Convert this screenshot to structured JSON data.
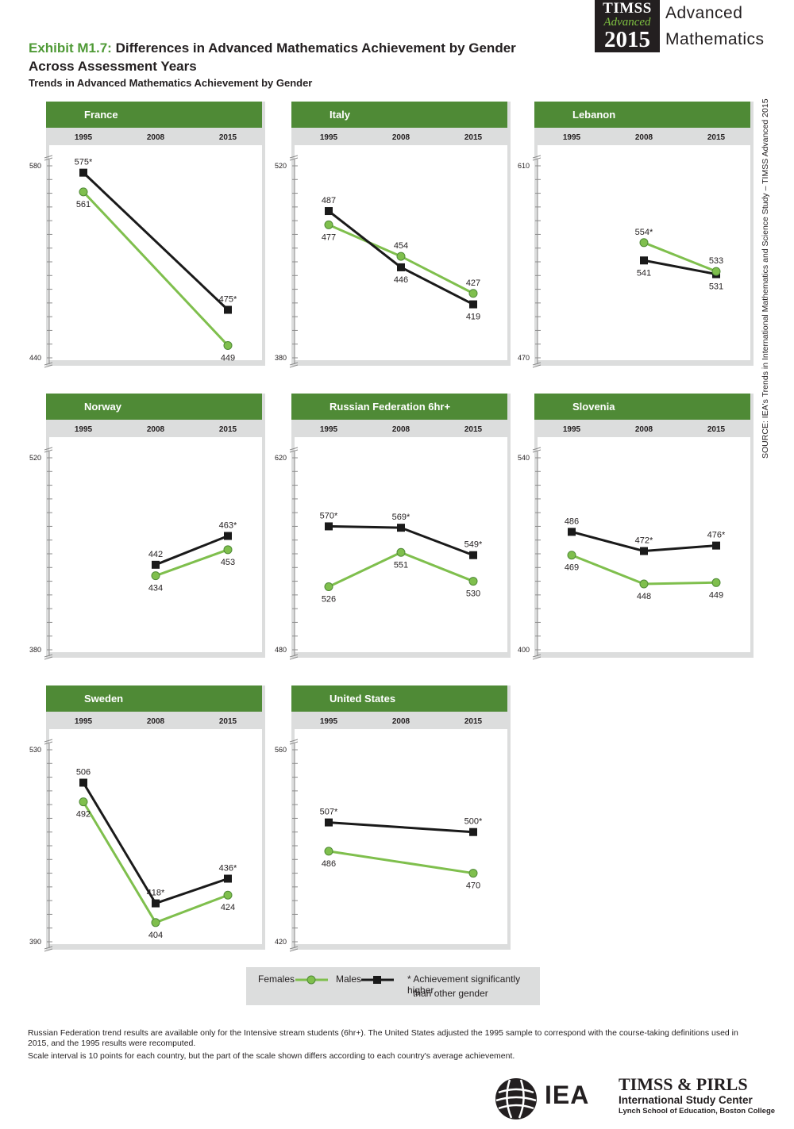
{
  "header": {
    "logo_line1": "TIMSS",
    "logo_line2": "Advanced",
    "logo_line3": "2015",
    "subject_line1": "Advanced",
    "subject_line2": "Mathematics"
  },
  "title": {
    "exhibit_number": "Exhibit M1.7:",
    "line1_rest": "Differences in Advanced Mathematics Achievement by Gender",
    "line2": "Across Assessment Years",
    "subtitle": "Trends in Advanced Mathematics Achievement by Gender"
  },
  "source_note": "SOURCE: IEA's Trends in International Mathematics and Science Study – TIMSS Advanced 2015",
  "colors": {
    "header_green": "#4f8a36",
    "female_line": "#7fbf4d",
    "male_line": "#1a1a1a",
    "year_band": "#dcdddd",
    "panel_shadow": "#dcdddd"
  },
  "chart_data": [
    {
      "type": "line",
      "title": "France",
      "categories": [
        "1995",
        "2008",
        "2015"
      ],
      "ylim": [
        440,
        580
      ],
      "series": [
        {
          "name": "Females",
          "values": [
            561,
            null,
            449
          ],
          "significant": [
            false,
            false,
            false
          ]
        },
        {
          "name": "Males",
          "values": [
            575,
            null,
            475
          ],
          "significant": [
            true,
            false,
            true
          ]
        }
      ]
    },
    {
      "type": "line",
      "title": "Italy",
      "categories": [
        "1995",
        "2008",
        "2015"
      ],
      "ylim": [
        380,
        520
      ],
      "series": [
        {
          "name": "Females",
          "values": [
            477,
            454,
            427
          ],
          "significant": [
            false,
            false,
            false
          ]
        },
        {
          "name": "Males",
          "values": [
            487,
            446,
            419
          ],
          "significant": [
            false,
            false,
            false
          ]
        }
      ]
    },
    {
      "type": "line",
      "title": "Lebanon",
      "categories": [
        "1995",
        "2008",
        "2015"
      ],
      "ylim": [
        470,
        610
      ],
      "series": [
        {
          "name": "Females",
          "values": [
            null,
            554,
            533
          ],
          "significant": [
            false,
            true,
            false
          ]
        },
        {
          "name": "Males",
          "values": [
            null,
            541,
            531
          ],
          "significant": [
            false,
            false,
            false
          ]
        }
      ]
    },
    {
      "type": "line",
      "title": "Norway",
      "categories": [
        "1995",
        "2008",
        "2015"
      ],
      "ylim": [
        380,
        520
      ],
      "series": [
        {
          "name": "Females",
          "values": [
            null,
            434,
            453
          ],
          "significant": [
            false,
            false,
            false
          ]
        },
        {
          "name": "Males",
          "values": [
            null,
            442,
            463
          ],
          "significant": [
            false,
            false,
            true
          ]
        }
      ]
    },
    {
      "type": "line",
      "title": "Russian Federation 6hr+",
      "categories": [
        "1995",
        "2008",
        "2015"
      ],
      "ylim": [
        480,
        620
      ],
      "series": [
        {
          "name": "Females",
          "values": [
            526,
            551,
            530
          ],
          "significant": [
            false,
            false,
            false
          ]
        },
        {
          "name": "Males",
          "values": [
            570,
            569,
            549
          ],
          "significant": [
            true,
            true,
            true
          ]
        }
      ]
    },
    {
      "type": "line",
      "title": "Slovenia",
      "categories": [
        "1995",
        "2008",
        "2015"
      ],
      "ylim": [
        400,
        540
      ],
      "series": [
        {
          "name": "Females",
          "values": [
            469,
            448,
            449
          ],
          "significant": [
            false,
            false,
            false
          ]
        },
        {
          "name": "Males",
          "values": [
            486,
            472,
            476
          ],
          "significant": [
            false,
            true,
            true
          ]
        }
      ]
    },
    {
      "type": "line",
      "title": "Sweden",
      "categories": [
        "1995",
        "2008",
        "2015"
      ],
      "ylim": [
        390,
        530
      ],
      "series": [
        {
          "name": "Females",
          "values": [
            492,
            404,
            424
          ],
          "significant": [
            false,
            false,
            false
          ]
        },
        {
          "name": "Males",
          "values": [
            506,
            418,
            436
          ],
          "significant": [
            false,
            true,
            true
          ]
        }
      ]
    },
    {
      "type": "line",
      "title": "United States",
      "categories": [
        "1995",
        "2008",
        "2015"
      ],
      "ylim": [
        420,
        560
      ],
      "series": [
        {
          "name": "Females",
          "values": [
            486,
            null,
            470
          ],
          "significant": [
            false,
            false,
            false
          ]
        },
        {
          "name": "Males",
          "values": [
            507,
            null,
            500
          ],
          "significant": [
            true,
            false,
            true
          ]
        }
      ]
    }
  ],
  "legend": {
    "females": "Females",
    "males": "Males",
    "note_line1": "* Achievement significantly higher",
    "note_line2": "than other gender"
  },
  "footnotes": [
    "Russian Federation trend results are available only for the Intensive stream students (6hr+). The United States adjusted the 1995 sample to correspond with the course-taking definitions used in 2015, and the 1995 results were recomputed.",
    "Scale interval is 10 points for each country, but the part of the scale shown differs according to each country's average achievement."
  ],
  "footer": {
    "iea": "IEA",
    "line1": "TIMSS & PIRLS",
    "line2": "International Study Center",
    "line3": "Lynch School of Education, Boston College"
  }
}
